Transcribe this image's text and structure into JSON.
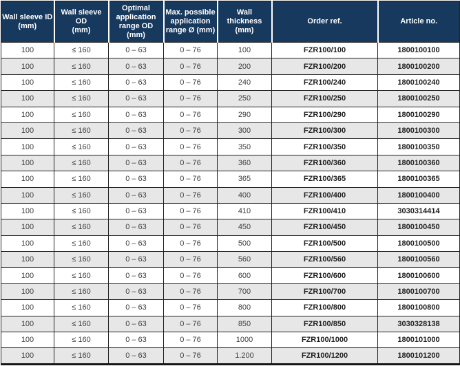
{
  "colors": {
    "header_bg": "#17395e",
    "header_text": "#ffffff",
    "row_alt_bg": "#e7e7e7",
    "grid_line": "#1f1f1f",
    "body_text": "#3d3d3d"
  },
  "table": {
    "columns": [
      "Wall sleeve ID\n(mm)",
      "Wall sleeve OD\n(mm)",
      "Optimal\napplication\nrange OD\n(mm)",
      "Max. possible\napplication\nrange Ø (mm)",
      "Wall thickness\n(mm)",
      "Order ref.",
      "Article no."
    ],
    "rows": [
      [
        "100",
        "≤ 160",
        "0 – 63",
        "0 – 76",
        "100",
        "FZR100/100",
        "1800100100"
      ],
      [
        "100",
        "≤ 160",
        "0 – 63",
        "0 – 76",
        "200",
        "FZR100/200",
        "1800100200"
      ],
      [
        "100",
        "≤ 160",
        "0 – 63",
        "0 – 76",
        "240",
        "FZR100/240",
        "1800100240"
      ],
      [
        "100",
        "≤ 160",
        "0 – 63",
        "0 – 76",
        "250",
        "FZR100/250",
        "1800100250"
      ],
      [
        "100",
        "≤ 160",
        "0 – 63",
        "0 – 76",
        "290",
        "FZR100/290",
        "1800100290"
      ],
      [
        "100",
        "≤ 160",
        "0 – 63",
        "0 – 76",
        "300",
        "FZR100/300",
        "1800100300"
      ],
      [
        "100",
        "≤ 160",
        "0 – 63",
        "0 – 76",
        "350",
        "FZR100/350",
        "1800100350"
      ],
      [
        "100",
        "≤ 160",
        "0 – 63",
        "0 – 76",
        "360",
        "FZR100/360",
        "1800100360"
      ],
      [
        "100",
        "≤ 160",
        "0 – 63",
        "0 – 76",
        "365",
        "FZR100/365",
        "1800100365"
      ],
      [
        "100",
        "≤ 160",
        "0 – 63",
        "0 – 76",
        "400",
        "FZR100/400",
        "1800100400"
      ],
      [
        "100",
        "≤ 160",
        "0 – 63",
        "0 – 76",
        "410",
        "FZR100/410",
        "3030314414"
      ],
      [
        "100",
        "≤ 160",
        "0 – 63",
        "0 – 76",
        "450",
        "FZR100/450",
        "1800100450"
      ],
      [
        "100",
        "≤ 160",
        "0 – 63",
        "0 – 76",
        "500",
        "FZR100/500",
        "1800100500"
      ],
      [
        "100",
        "≤ 160",
        "0 – 63",
        "0 – 76",
        "560",
        "FZR100/560",
        "1800100560"
      ],
      [
        "100",
        "≤ 160",
        "0 – 63",
        "0 – 76",
        "600",
        "FZR100/600",
        "1800100600"
      ],
      [
        "100",
        "≤ 160",
        "0 – 63",
        "0 – 76",
        "700",
        "FZR100/700",
        "1800100700"
      ],
      [
        "100",
        "≤ 160",
        "0 – 63",
        "0 – 76",
        "800",
        "FZR100/800",
        "1800100800"
      ],
      [
        "100",
        "≤ 160",
        "0 – 63",
        "0 – 76",
        "850",
        "FZR100/850",
        "3030328138"
      ],
      [
        "100",
        "≤ 160",
        "0 – 63",
        "0 – 76",
        "1000",
        "FZR100/1000",
        "1800101000"
      ],
      [
        "100",
        "≤ 160",
        "0 – 63",
        "0 – 76",
        "1.200",
        "FZR100/1200",
        "1800101200"
      ]
    ]
  }
}
